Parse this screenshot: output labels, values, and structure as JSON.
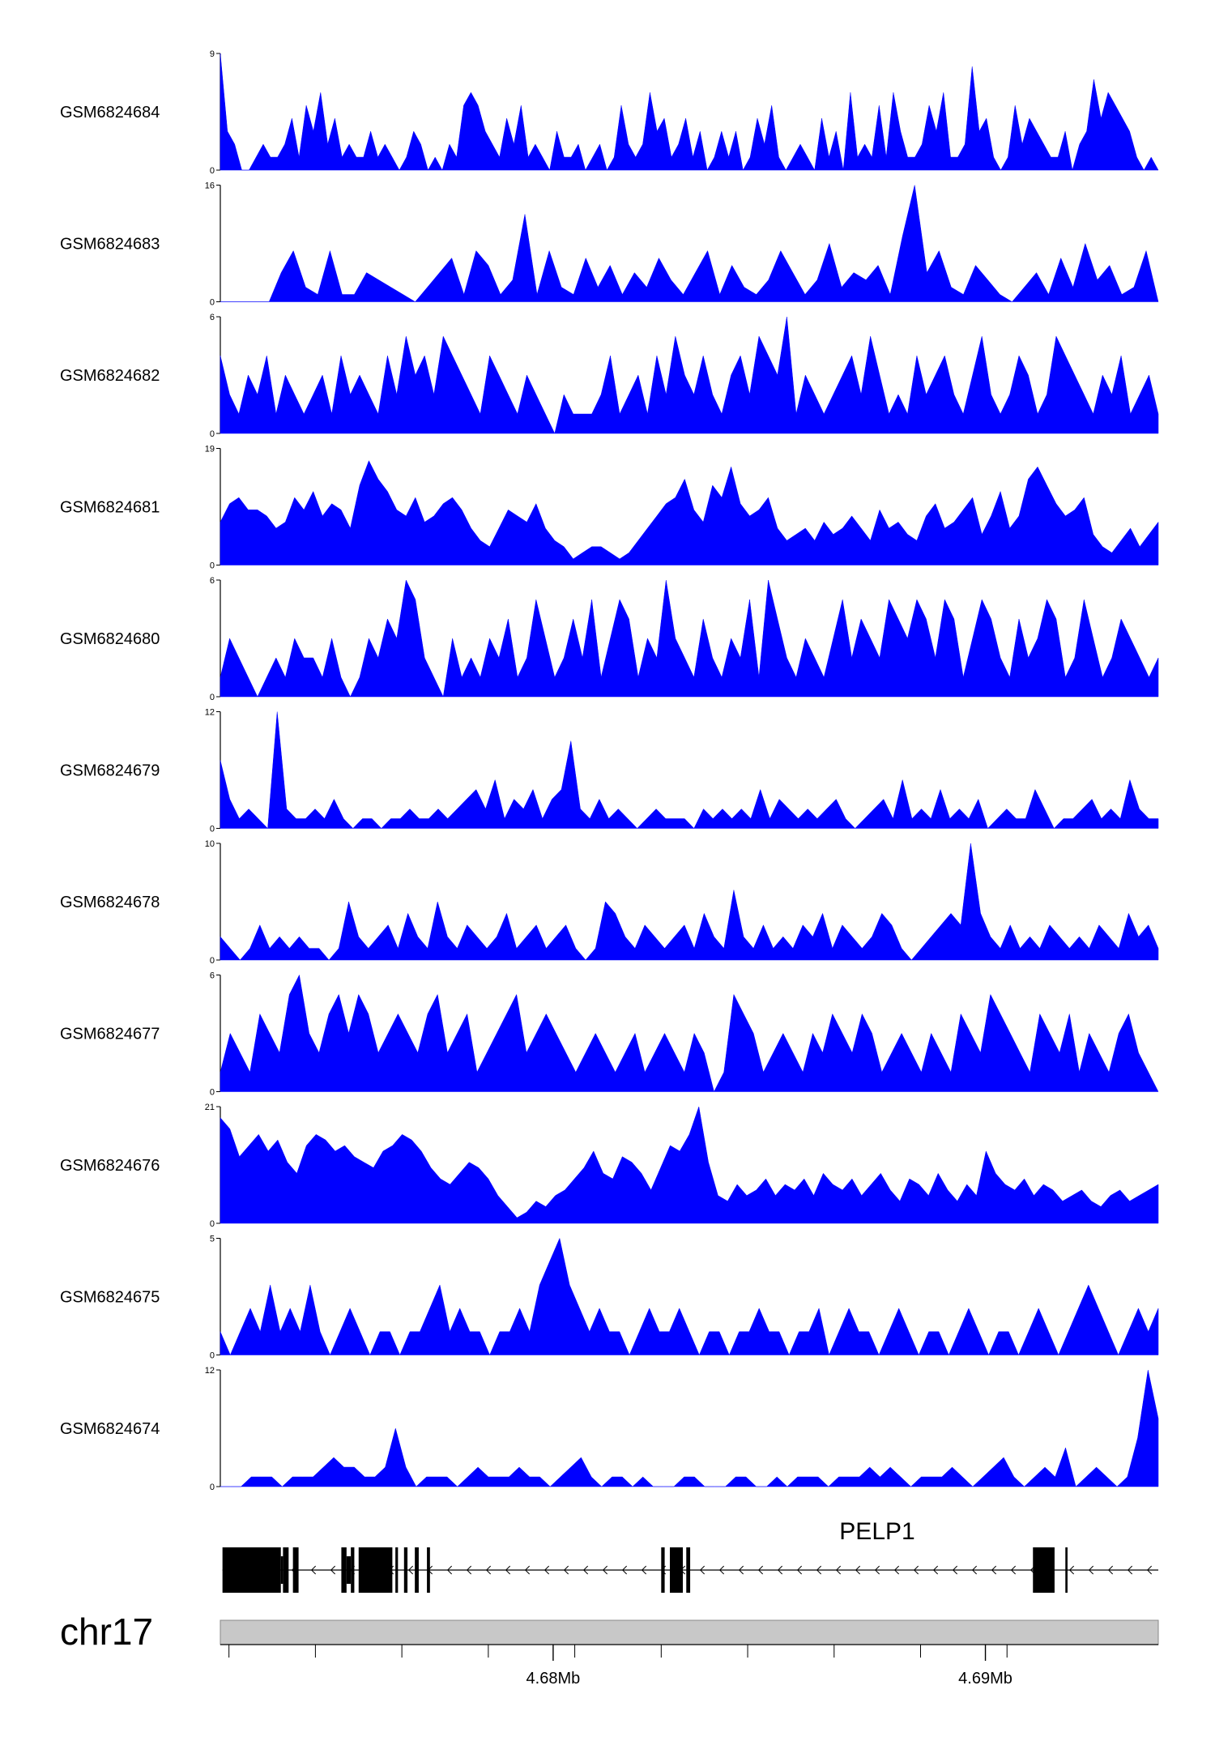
{
  "chart_data": {
    "type": "area",
    "colors": {
      "signal": "#0000ff",
      "gene": "#000000",
      "ideogram": "#c8c8c8",
      "axis": "#000000"
    },
    "x_range_mb": [
      4.6723,
      4.694
    ],
    "x_ticks_mb": [
      4.6725,
      4.6745,
      4.6765,
      4.6785,
      4.6805,
      4.6825,
      4.6845,
      4.6865,
      4.6885,
      4.6905
    ],
    "x_tick_labels": [
      {
        "value": 4.68,
        "label": "4.68Mb"
      },
      {
        "value": 4.69,
        "label": "4.69Mb"
      }
    ],
    "chromosome": "chr17",
    "gene": {
      "name": "PELP1",
      "strand": "-",
      "exons_mb": [
        [
          4.67235,
          4.6737
        ],
        [
          4.67375,
          4.67388
        ],
        [
          4.67398,
          4.67411
        ],
        [
          4.6751,
          4.67522
        ],
        [
          4.67532,
          4.6754
        ],
        [
          4.6755,
          4.67628
        ],
        [
          4.67635,
          4.67641
        ],
        [
          4.67655,
          4.67663
        ],
        [
          4.6768,
          4.67689
        ],
        [
          4.67708,
          4.67715
        ],
        [
          4.6825,
          4.68258
        ],
        [
          4.6827,
          4.683
        ],
        [
          4.68308,
          4.68317
        ],
        [
          4.6911,
          4.6916
        ],
        [
          4.69185,
          4.6919
        ]
      ],
      "thin_exons_mb": [
        [
          4.6737,
          4.67375
        ],
        [
          4.67522,
          4.67532
        ]
      ],
      "intron_span_mb": [
        4.67235,
        4.694
      ]
    },
    "tracks": [
      {
        "name": "GSM6824684",
        "max": 9,
        "values": [
          9,
          3,
          2,
          0,
          0,
          1,
          2,
          1,
          1,
          2,
          4,
          1,
          5,
          3,
          6,
          2,
          4,
          1,
          2,
          1,
          1,
          3,
          1,
          2,
          1,
          0,
          1,
          3,
          2,
          0,
          1,
          0,
          2,
          1,
          5,
          6,
          5,
          3,
          2,
          1,
          4,
          2,
          5,
          1,
          2,
          1,
          0,
          3,
          1,
          1,
          2,
          0,
          1,
          2,
          0,
          1,
          5,
          2,
          1,
          2,
          6,
          3,
          4,
          1,
          2,
          4,
          1,
          3,
          0,
          1,
          3,
          1,
          3,
          0,
          1,
          4,
          2,
          5,
          1,
          0,
          1,
          2,
          1,
          0,
          4,
          1,
          3,
          0,
          6,
          1,
          2,
          1,
          5,
          1,
          6,
          3,
          1,
          1,
          2,
          5,
          3,
          6,
          1,
          1,
          2,
          8,
          3,
          4,
          1,
          0,
          1,
          5,
          2,
          4,
          3,
          2,
          1,
          1,
          3,
          0,
          2,
          3,
          7,
          4,
          6,
          5,
          4,
          3,
          1,
          0,
          1,
          0
        ]
      },
      {
        "name": "GSM6824683",
        "max": 16,
        "values": [
          0,
          0,
          0,
          0,
          0,
          4,
          7,
          2,
          1,
          7,
          1,
          1,
          4,
          3,
          2,
          1,
          0,
          2,
          4,
          6,
          1,
          7,
          5,
          1,
          3,
          12,
          1,
          7,
          2,
          1,
          6,
          2,
          5,
          1,
          4,
          2,
          6,
          3,
          1,
          4,
          7,
          1,
          5,
          2,
          1,
          3,
          7,
          4,
          1,
          3,
          8,
          2,
          4,
          3,
          5,
          1,
          9,
          16,
          4,
          7,
          2,
          1,
          5,
          3,
          1,
          0,
          2,
          4,
          1,
          6,
          2,
          8,
          3,
          5,
          1,
          2,
          7,
          0
        ]
      },
      {
        "name": "GSM6824682",
        "max": 6,
        "values": [
          4,
          2,
          1,
          3,
          2,
          4,
          1,
          3,
          2,
          1,
          2,
          3,
          1,
          4,
          2,
          3,
          2,
          1,
          4,
          2,
          5,
          3,
          4,
          2,
          5,
          4,
          3,
          2,
          1,
          4,
          3,
          2,
          1,
          3,
          2,
          1,
          0,
          2,
          1,
          1,
          1,
          2,
          4,
          1,
          2,
          3,
          1,
          4,
          2,
          5,
          3,
          2,
          4,
          2,
          1,
          3,
          4,
          2,
          5,
          4,
          3,
          6,
          1,
          3,
          2,
          1,
          2,
          3,
          4,
          2,
          5,
          3,
          1,
          2,
          1,
          4,
          2,
          3,
          4,
          2,
          1,
          3,
          5,
          2,
          1,
          2,
          4,
          3,
          1,
          2,
          5,
          4,
          3,
          2,
          1,
          3,
          2,
          4,
          1,
          2,
          3,
          1
        ]
      },
      {
        "name": "GSM6824681",
        "max": 19,
        "values": [
          7,
          10,
          11,
          9,
          9,
          8,
          6,
          7,
          11,
          9,
          12,
          8,
          10,
          9,
          6,
          13,
          17,
          14,
          12,
          9,
          8,
          11,
          7,
          8,
          10,
          11,
          9,
          6,
          4,
          3,
          6,
          9,
          8,
          7,
          10,
          6,
          4,
          3,
          1,
          2,
          3,
          3,
          2,
          1,
          2,
          4,
          6,
          8,
          10,
          11,
          14,
          9,
          7,
          13,
          11,
          16,
          10,
          8,
          9,
          11,
          6,
          4,
          5,
          6,
          4,
          7,
          5,
          6,
          8,
          6,
          4,
          9,
          6,
          7,
          5,
          4,
          8,
          10,
          6,
          7,
          9,
          11,
          5,
          8,
          12,
          6,
          8,
          14,
          16,
          13,
          10,
          8,
          9,
          11,
          5,
          3,
          2,
          4,
          6,
          3,
          5,
          7
        ]
      },
      {
        "name": "GSM6824680",
        "max": 6,
        "values": [
          1,
          3,
          2,
          1,
          0,
          1,
          2,
          1,
          3,
          2,
          2,
          1,
          3,
          1,
          0,
          1,
          3,
          2,
          4,
          3,
          6,
          5,
          2,
          1,
          0,
          3,
          1,
          2,
          1,
          3,
          2,
          4,
          1,
          2,
          5,
          3,
          1,
          2,
          4,
          2,
          5,
          1,
          3,
          5,
          4,
          1,
          3,
          2,
          6,
          3,
          2,
          1,
          4,
          2,
          1,
          3,
          2,
          5,
          1,
          6,
          4,
          2,
          1,
          3,
          2,
          1,
          3,
          5,
          2,
          4,
          3,
          2,
          5,
          4,
          3,
          5,
          4,
          2,
          5,
          4,
          1,
          3,
          5,
          4,
          2,
          1,
          4,
          2,
          3,
          5,
          4,
          1,
          2,
          5,
          3,
          1,
          2,
          4,
          3,
          2,
          1,
          2
        ]
      },
      {
        "name": "GSM6824679",
        "max": 12,
        "values": [
          7,
          3,
          1,
          2,
          1,
          0,
          12,
          2,
          1,
          1,
          2,
          1,
          3,
          1,
          0,
          1,
          1,
          0,
          1,
          1,
          2,
          1,
          1,
          2,
          1,
          2,
          3,
          4,
          2,
          5,
          1,
          3,
          2,
          4,
          1,
          3,
          4,
          9,
          2,
          1,
          3,
          1,
          2,
          1,
          0,
          1,
          2,
          1,
          1,
          1,
          0,
          2,
          1,
          2,
          1,
          2,
          1,
          4,
          1,
          3,
          2,
          1,
          2,
          1,
          2,
          3,
          1,
          0,
          1,
          2,
          3,
          1,
          5,
          1,
          2,
          1,
          4,
          1,
          2,
          1,
          3,
          0,
          1,
          2,
          1,
          1,
          4,
          2,
          0,
          1,
          1,
          2,
          3,
          1,
          2,
          1,
          5,
          2,
          1,
          1
        ]
      },
      {
        "name": "GSM6824678",
        "max": 10,
        "values": [
          2,
          1,
          0,
          1,
          3,
          1,
          2,
          1,
          2,
          1,
          1,
          0,
          1,
          5,
          2,
          1,
          2,
          3,
          1,
          4,
          2,
          1,
          5,
          2,
          1,
          3,
          2,
          1,
          2,
          4,
          1,
          2,
          3,
          1,
          2,
          3,
          1,
          0,
          1,
          5,
          4,
          2,
          1,
          3,
          2,
          1,
          2,
          3,
          1,
          4,
          2,
          1,
          6,
          2,
          1,
          3,
          1,
          2,
          1,
          3,
          2,
          4,
          1,
          3,
          2,
          1,
          2,
          4,
          3,
          1,
          0,
          1,
          2,
          3,
          4,
          3,
          10,
          4,
          2,
          1,
          3,
          1,
          2,
          1,
          3,
          2,
          1,
          2,
          1,
          3,
          2,
          1,
          4,
          2,
          3,
          1
        ]
      },
      {
        "name": "GSM6824677",
        "max": 6,
        "values": [
          1,
          3,
          2,
          1,
          4,
          3,
          2,
          5,
          6,
          3,
          2,
          4,
          5,
          3,
          5,
          4,
          2,
          3,
          4,
          3,
          2,
          4,
          5,
          2,
          3,
          4,
          1,
          2,
          3,
          4,
          5,
          2,
          3,
          4,
          3,
          2,
          1,
          2,
          3,
          2,
          1,
          2,
          3,
          1,
          2,
          3,
          2,
          1,
          3,
          2,
          0,
          1,
          5,
          4,
          3,
          1,
          2,
          3,
          2,
          1,
          3,
          2,
          4,
          3,
          2,
          4,
          3,
          1,
          2,
          3,
          2,
          1,
          3,
          2,
          1,
          4,
          3,
          2,
          5,
          4,
          3,
          2,
          1,
          4,
          3,
          2,
          4,
          1,
          3,
          2,
          1,
          3,
          4,
          2,
          1,
          0
        ]
      },
      {
        "name": "GSM6824676",
        "max": 21,
        "values": [
          19,
          17,
          12,
          14,
          16,
          13,
          15,
          11,
          9,
          14,
          16,
          15,
          13,
          14,
          12,
          11,
          10,
          13,
          14,
          16,
          15,
          13,
          10,
          8,
          7,
          9,
          11,
          10,
          8,
          5,
          3,
          1,
          2,
          4,
          3,
          5,
          6,
          8,
          10,
          13,
          9,
          8,
          12,
          11,
          9,
          6,
          10,
          14,
          13,
          16,
          21,
          11,
          5,
          4,
          7,
          5,
          6,
          8,
          5,
          7,
          6,
          8,
          5,
          9,
          7,
          6,
          8,
          5,
          7,
          9,
          6,
          4,
          8,
          7,
          5,
          9,
          6,
          4,
          7,
          5,
          13,
          9,
          7,
          6,
          8,
          5,
          7,
          6,
          4,
          5,
          6,
          4,
          3,
          5,
          6,
          4,
          5,
          6,
          7
        ]
      },
      {
        "name": "GSM6824675",
        "max": 5,
        "values": [
          1,
          0,
          1,
          2,
          1,
          3,
          1,
          2,
          1,
          3,
          1,
          0,
          1,
          2,
          1,
          0,
          1,
          1,
          0,
          1,
          1,
          2,
          3,
          1,
          2,
          1,
          1,
          0,
          1,
          1,
          2,
          1,
          3,
          4,
          5,
          3,
          2,
          1,
          2,
          1,
          1,
          0,
          1,
          2,
          1,
          1,
          2,
          1,
          0,
          1,
          1,
          0,
          1,
          1,
          2,
          1,
          1,
          0,
          1,
          1,
          2,
          0,
          1,
          2,
          1,
          1,
          0,
          1,
          2,
          1,
          0,
          1,
          1,
          0,
          1,
          2,
          1,
          0,
          1,
          1,
          0,
          1,
          2,
          1,
          0,
          1,
          2,
          3,
          2,
          1,
          0,
          1,
          2,
          1,
          2
        ]
      },
      {
        "name": "GSM6824674",
        "max": 12,
        "values": [
          0,
          0,
          0,
          1,
          1,
          1,
          0,
          1,
          1,
          1,
          2,
          3,
          2,
          2,
          1,
          1,
          2,
          6,
          2,
          0,
          1,
          1,
          1,
          0,
          1,
          2,
          1,
          1,
          1,
          2,
          1,
          1,
          0,
          1,
          2,
          3,
          1,
          0,
          1,
          1,
          0,
          1,
          0,
          0,
          0,
          1,
          1,
          0,
          0,
          0,
          1,
          1,
          0,
          0,
          1,
          0,
          1,
          1,
          1,
          0,
          1,
          1,
          1,
          2,
          1,
          2,
          1,
          0,
          1,
          1,
          1,
          2,
          1,
          0,
          1,
          2,
          3,
          1,
          0,
          1,
          2,
          1,
          4,
          0,
          1,
          2,
          1,
          0,
          1,
          5,
          12,
          7
        ]
      }
    ]
  }
}
